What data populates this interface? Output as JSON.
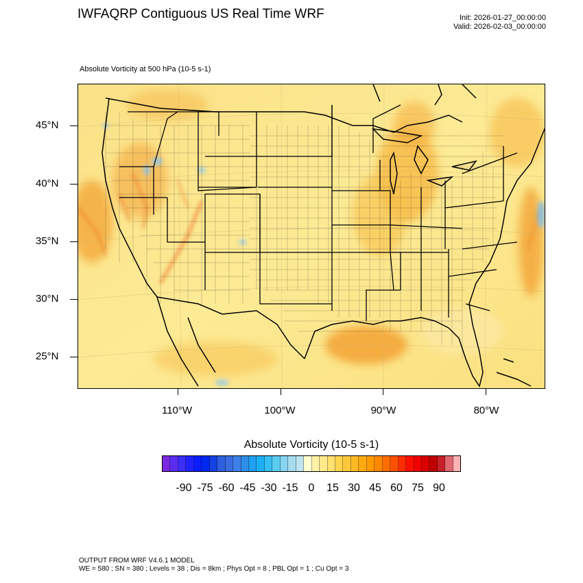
{
  "title": "IWFAQRP Contiguous US Real Time WRF",
  "init_time": "Init: 2026-01-27_00:00:00",
  "valid_time": "Valid: 2026-02-03_00:00:00",
  "field_label": "Absolute Vorticity at 500 hPa   (10-5 s-1)",
  "map": {
    "lat_labels": [
      "45°N",
      "40°N",
      "35°N",
      "30°N",
      "25°N"
    ],
    "lon_labels": [
      "110°W",
      "100°W",
      "90°W",
      "80°W"
    ],
    "colors": {
      "background_field": "#fbe88a",
      "enhanced_field": "#f6c24a",
      "strong_positive": "#f2921e",
      "negative": "#7fc4ef",
      "water": "#fde9a3",
      "boundaries": "#000000"
    }
  },
  "colorbar": {
    "title": "Absolute Vorticity  (10-5 s-1)",
    "tick_labels": [
      "-90",
      "-75",
      "-60",
      "-45",
      "-30",
      "-15",
      "0",
      "15",
      "30",
      "45",
      "60",
      "75",
      "90"
    ],
    "colors": [
      "#7b29e0",
      "#5a2cf0",
      "#3b2ef5",
      "#1f22ff",
      "#0a1fff",
      "#0028f0",
      "#1443e3",
      "#2f5fdd",
      "#3a6ee0",
      "#3c7fe6",
      "#2f8fe8",
      "#1fa0f0",
      "#1cb1f5",
      "#38bff2",
      "#5ccbf0",
      "#86d4f0",
      "#a6dcf0",
      "#c0e4ef",
      "#ffffcf",
      "#fff2a6",
      "#ffe98a",
      "#ffe070",
      "#ffd54e",
      "#ffc83a",
      "#ffba24",
      "#ffaa10",
      "#ff9a00",
      "#ff8800",
      "#ff6e00",
      "#ff5200",
      "#ff2e00",
      "#ff0f00",
      "#f20000",
      "#d90000",
      "#c00000",
      "#c8202a",
      "#e06870",
      "#ffb2b2"
    ]
  },
  "footer": {
    "line1": "OUTPUT FROM WRF V4.6.1 MODEL",
    "line2": "WE = 580 ; SN = 380 ; Levels = 38 ; Dis = 8km ; Phys Opt = 8 ; PBL Opt = 1 ; Cu Opt = 3"
  }
}
